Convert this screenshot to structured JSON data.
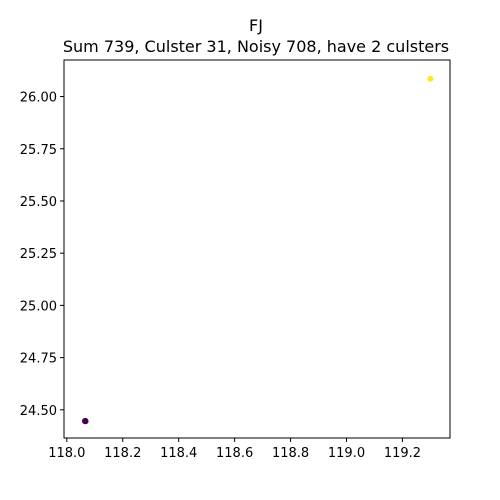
{
  "chart_data": {
    "type": "scatter",
    "title": "FJ",
    "subtitle": "Sum 739, Culster 31, Noisy 708, have 2 culsters",
    "xlabel": "",
    "ylabel": "",
    "xlim": [
      117.99,
      119.37
    ],
    "ylim": [
      24.365,
      26.175
    ],
    "x_ticks": [
      118.0,
      118.2,
      118.4,
      118.6,
      118.8,
      119.0,
      119.2
    ],
    "x_tick_labels": [
      "118.0",
      "118.2",
      "118.4",
      "118.6",
      "118.8",
      "119.0",
      "119.2"
    ],
    "y_ticks": [
      24.5,
      24.75,
      25.0,
      25.25,
      25.5,
      25.75,
      26.0
    ],
    "y_tick_labels": [
      "24.50",
      "24.75",
      "25.00",
      "25.25",
      "25.50",
      "25.75",
      "26.00"
    ],
    "grid": false,
    "series": [
      {
        "color": "#440154",
        "points": [
          [
            118.065,
            24.446
          ],
          [
            118.066,
            24.447
          ],
          [
            118.067,
            24.445
          ]
        ]
      },
      {
        "color": "#fde725",
        "points": [
          [
            119.3,
            26.085
          ]
        ]
      }
    ]
  }
}
